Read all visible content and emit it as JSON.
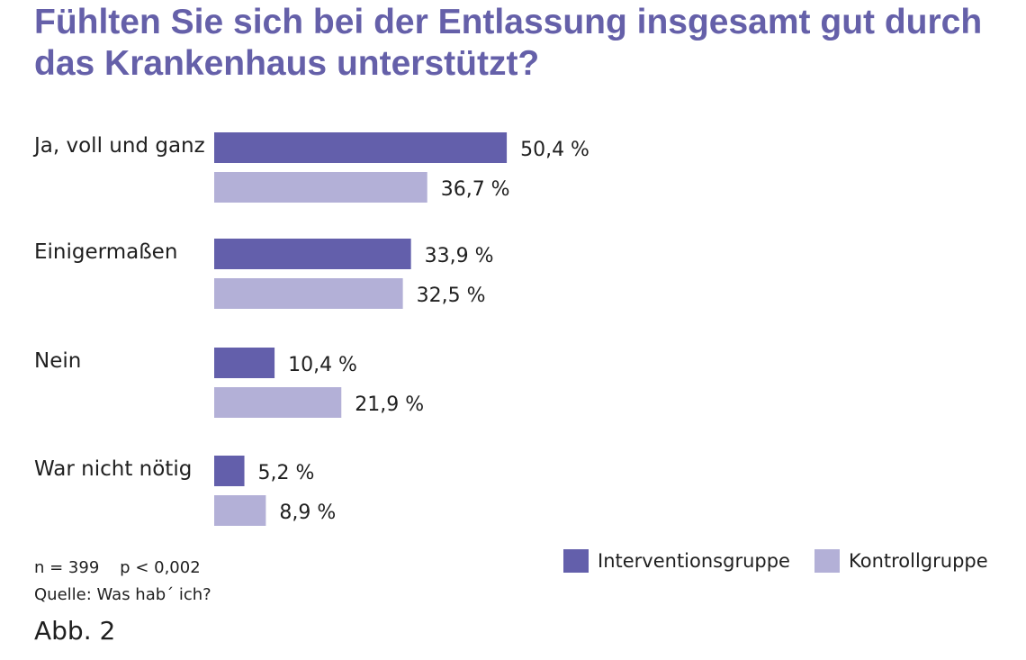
{
  "chart_data": {
    "type": "bar",
    "orientation": "horizontal",
    "title": "Fühlten Sie sich bei der Entlassung insgesamt gut durch das Krankenhaus unterstützt?",
    "categories": [
      "Ja, voll und ganz",
      "Einigermaßen",
      "Nein",
      "War nicht nötig"
    ],
    "series": [
      {
        "name": "Interventionsgruppe",
        "color": "#635fab",
        "values": [
          50.4,
          33.9,
          10.4,
          5.2
        ],
        "labels": [
          "50,4 %",
          "33,9 %",
          "10,4 %",
          "5,2 %"
        ]
      },
      {
        "name": "Kontrollgruppe",
        "color": "#b3b0d7",
        "values": [
          36.7,
          32.5,
          21.9,
          8.9
        ],
        "labels": [
          "36,7 %",
          "32,5 %",
          "21,9 %",
          "8,9 %"
        ]
      }
    ],
    "xlim": [
      0,
      100
    ],
    "grid": false,
    "legend_position": "bottom-right"
  },
  "footnotes": {
    "stats": "n = 399    p < 0,002",
    "source": "Quelle: Was hab´ ich?"
  },
  "figure_label": "Abb. 2"
}
